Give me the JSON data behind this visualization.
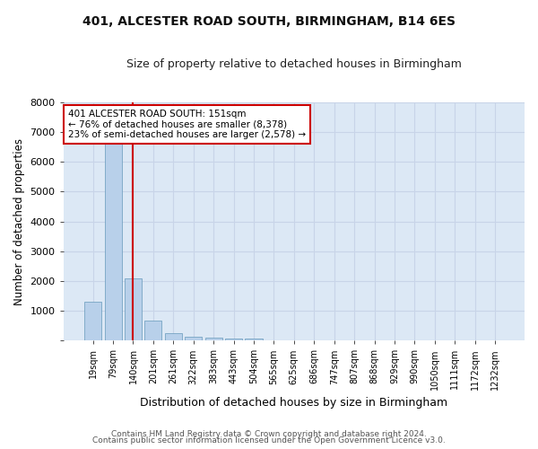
{
  "title": "401, ALCESTER ROAD SOUTH, BIRMINGHAM, B14 6ES",
  "subtitle": "Size of property relative to detached houses in Birmingham",
  "xlabel": "Distribution of detached houses by size in Birmingham",
  "ylabel": "Number of detached properties",
  "footer_line1": "Contains HM Land Registry data © Crown copyright and database right 2024.",
  "footer_line2": "Contains public sector information licensed under the Open Government Licence v3.0.",
  "bar_labels": [
    "19sqm",
    "79sqm",
    "140sqm",
    "201sqm",
    "261sqm",
    "322sqm",
    "383sqm",
    "443sqm",
    "504sqm",
    "565sqm",
    "625sqm",
    "686sqm",
    "747sqm",
    "807sqm",
    "868sqm",
    "929sqm",
    "990sqm",
    "1050sqm",
    "1111sqm",
    "1172sqm",
    "1232sqm"
  ],
  "bar_values": [
    1300,
    6600,
    2080,
    680,
    260,
    130,
    80,
    50,
    70,
    0,
    0,
    0,
    0,
    0,
    0,
    0,
    0,
    0,
    0,
    0,
    0
  ],
  "bar_color": "#b8d0ea",
  "bar_edge_color": "#6699bb",
  "grid_color": "#c8d4e8",
  "plot_bg_color": "#dce8f5",
  "figure_bg_color": "#ffffff",
  "annotation_text": "401 ALCESTER ROAD SOUTH: 151sqm\n← 76% of detached houses are smaller (8,378)\n23% of semi-detached houses are larger (2,578) →",
  "annotation_box_color": "#ffffff",
  "annotation_box_edge_color": "#cc0000",
  "vline_x": 2.0,
  "vline_color": "#cc0000",
  "ylim": [
    0,
    8000
  ],
  "yticks": [
    0,
    1000,
    2000,
    3000,
    4000,
    5000,
    6000,
    7000,
    8000
  ]
}
